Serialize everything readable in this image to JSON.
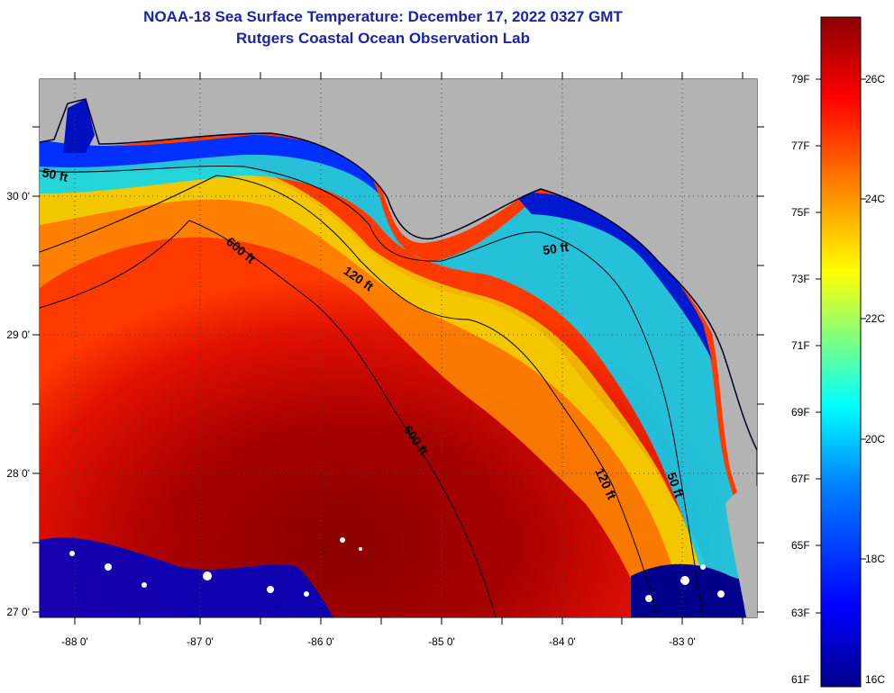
{
  "title": "NOAA-18 Sea Surface Temperature:  December 17, 2022 0327 GMT",
  "subtitle": "Rutgers Coastal Ocean Observation Lab",
  "map": {
    "lat_ticks": [
      "30 0'",
      "29 0'",
      "28 0'",
      "27 0'"
    ],
    "lon_ticks": [
      "-88 0'",
      "-87 0'",
      "-86 0'",
      "-85 0'",
      "-84 0'",
      "-83 0'"
    ],
    "contour_labels": [
      "50 ft",
      "600 ft",
      "120 ft",
      "50 ft",
      "600 ft",
      "120 ft",
      "50 ft"
    ],
    "land_color": "#b3b3b3"
  },
  "colorbar": {
    "fahrenheit": [
      "79F",
      "77F",
      "75F",
      "73F",
      "71F",
      "69F",
      "67F",
      "65F",
      "63F",
      "61F"
    ],
    "celsius": [
      "26C",
      "24C",
      "22C",
      "20C",
      "18C",
      "16C"
    ],
    "colors": [
      "#00008b",
      "#0000ff",
      "#0080ff",
      "#00ffff",
      "#80ff80",
      "#ffff00",
      "#ff8000",
      "#ff0000",
      "#8b0000"
    ]
  }
}
